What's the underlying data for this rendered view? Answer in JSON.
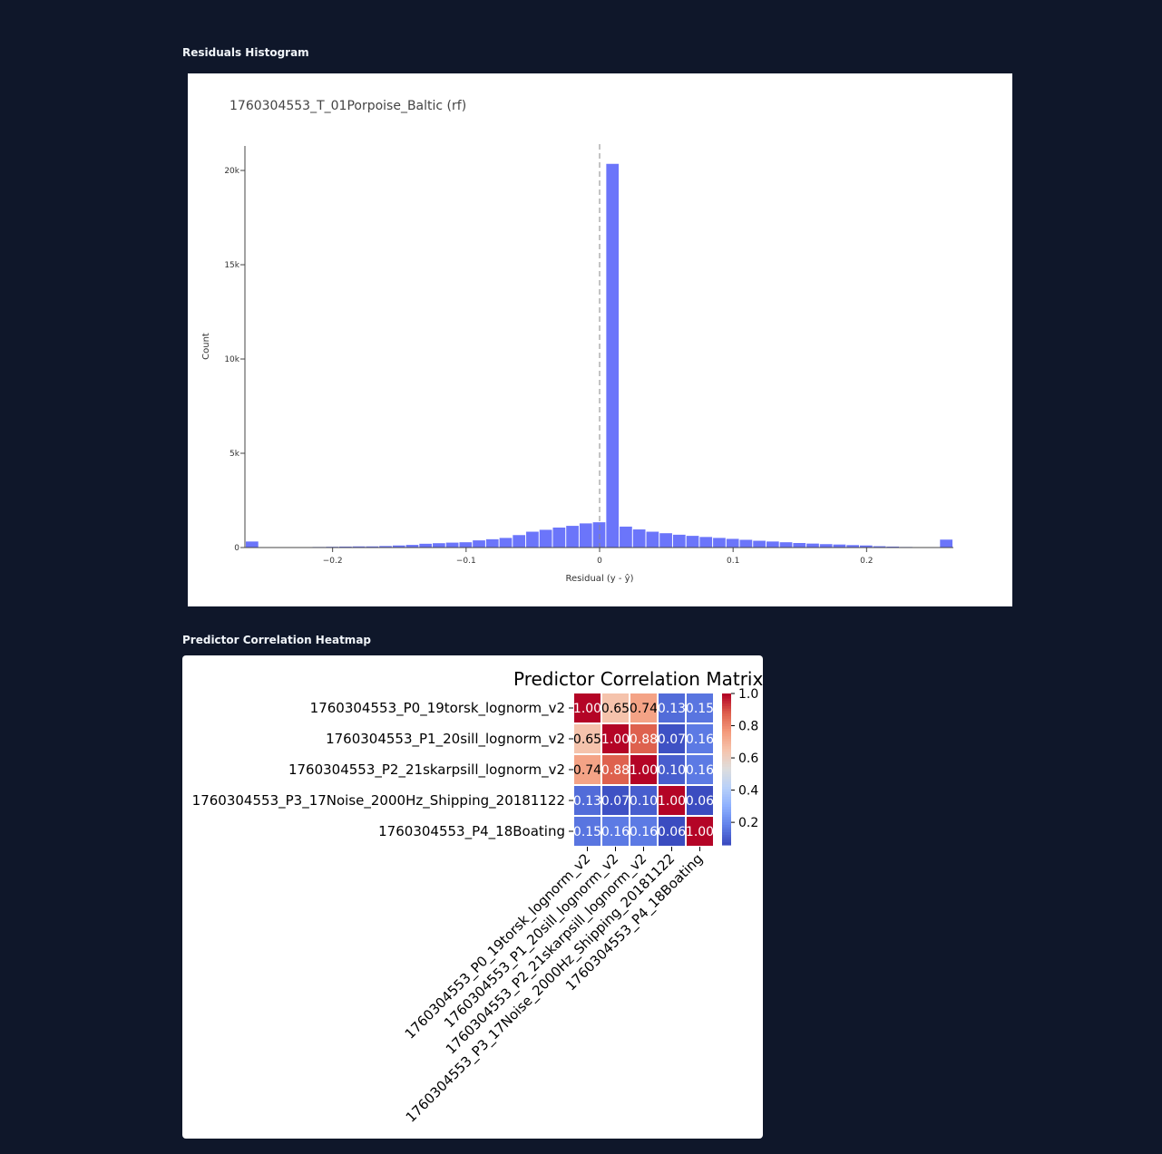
{
  "sections": {
    "histogram_title": "Residuals Histogram",
    "heatmap_title": "Predictor Correlation Heatmap"
  },
  "chart_data": [
    {
      "type": "bar",
      "title": "1760304553_T_01Porpoise_Baltic (rf)",
      "xlabel": "Residual (y - ŷ)",
      "ylabel": "Count",
      "bar_color": "#636efa",
      "xlim": [
        -0.265,
        0.265
      ],
      "ylim": [
        0,
        21300
      ],
      "x_ticks": [
        {
          "value": -0.2,
          "label": "−0.2"
        },
        {
          "value": -0.1,
          "label": "−0.1"
        },
        {
          "value": 0,
          "label": "0"
        },
        {
          "value": 0.1,
          "label": "0.1"
        },
        {
          "value": 0.2,
          "label": "0.2"
        }
      ],
      "y_ticks": [
        {
          "value": 0,
          "label": "0"
        },
        {
          "value": 5000,
          "label": "5k"
        },
        {
          "value": 10000,
          "label": "10k"
        },
        {
          "value": 15000,
          "label": "15k"
        },
        {
          "value": 20000,
          "label": "20k"
        }
      ],
      "reference_line": 0,
      "bin_start": -0.265,
      "bin_width": 0.01,
      "values": [
        320,
        10,
        10,
        20,
        20,
        30,
        40,
        50,
        60,
        60,
        80,
        110,
        140,
        200,
        230,
        260,
        280,
        380,
        440,
        510,
        660,
        840,
        940,
        1060,
        1150,
        1280,
        1340,
        20350,
        1110,
        960,
        840,
        760,
        680,
        620,
        560,
        510,
        460,
        410,
        360,
        320,
        280,
        240,
        210,
        180,
        160,
        130,
        110,
        70,
        50,
        30,
        20,
        20,
        420
      ]
    },
    {
      "type": "heatmap",
      "title": "Predictor Correlation Matrix",
      "labels": [
        "1760304553_P0_19torsk_lognorm_v2",
        "1760304553_P1_20sill_lognorm_v2",
        "1760304553_P2_21skarpsill_lognorm_v2",
        "1760304553_P3_17Noise_2000Hz_Shipping_20181122",
        "1760304553_P4_18Boating"
      ],
      "matrix": [
        [
          1.0,
          0.65,
          0.74,
          0.13,
          0.15
        ],
        [
          0.65,
          1.0,
          0.88,
          0.07,
          0.16
        ],
        [
          0.74,
          0.88,
          1.0,
          0.1,
          0.16
        ],
        [
          0.13,
          0.07,
          0.1,
          1.0,
          0.06
        ],
        [
          0.15,
          0.16,
          0.16,
          0.06,
          1.0
        ]
      ],
      "cell_text": [
        [
          "1.00",
          "0.65",
          "0.74",
          "0.13",
          "0.15"
        ],
        [
          "0.65",
          "1.00",
          "0.88",
          "0.07",
          "0.16"
        ],
        [
          "0.74",
          "0.88",
          "1.00",
          "0.10",
          "0.16"
        ],
        [
          "0.13",
          "0.07",
          "0.10",
          "1.00",
          "0.06"
        ],
        [
          "0.15",
          "0.16",
          "0.16",
          "0.06",
          "1.00"
        ]
      ],
      "colorscale": "coolwarm",
      "colorbar_range": [
        0.06,
        1.0
      ],
      "colorbar_ticks": [
        {
          "value": 1.0,
          "label": "1.0"
        },
        {
          "value": 0.8,
          "label": "0.8"
        },
        {
          "value": 0.6,
          "label": "0.6"
        },
        {
          "value": 0.4,
          "label": "0.4"
        },
        {
          "value": 0.2,
          "label": "0.2"
        }
      ]
    }
  ]
}
